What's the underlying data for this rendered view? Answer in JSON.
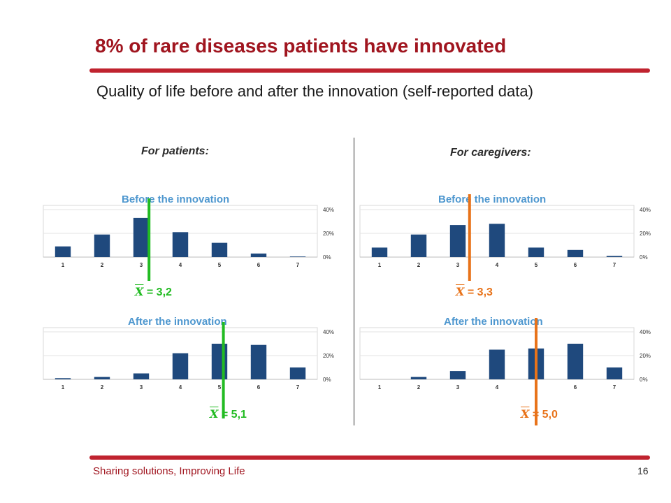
{
  "slide": {
    "title": "8% of rare diseases patients have innovated",
    "subtitle": "Quality of life before and after the innovation (self-reported data)",
    "footer": "Sharing solutions, Improving Life",
    "page_number": "16",
    "patients_heading": "For patients:",
    "caregivers_heading": "For caregivers:",
    "colors": {
      "title": "#a0151f",
      "rule": "#c0232f",
      "bar": "#1f497d",
      "chart_title": "#4e97cf",
      "patients_mean": "#22bb22",
      "caregivers_mean": "#e8731a"
    }
  },
  "chart_data": [
    {
      "type": "bar",
      "title": "Before the innovation",
      "group": "For patients:",
      "categories": [
        "1",
        "2",
        "3",
        "4",
        "5",
        "6",
        "7"
      ],
      "values": [
        9,
        19,
        33,
        21,
        12,
        3,
        0.5
      ],
      "ylim": [
        0,
        40
      ],
      "yticks": [
        "0%",
        "20%",
        "40%"
      ],
      "grid": true,
      "mean": 3.2,
      "mean_label": "= 3,2",
      "mean_symbol": "X",
      "mean_color": "#22bb22"
    },
    {
      "type": "bar",
      "title": "After the innovation",
      "group": "For patients:",
      "categories": [
        "1",
        "2",
        "3",
        "4",
        "5",
        "6",
        "7"
      ],
      "values": [
        1,
        2,
        5,
        22,
        30,
        29,
        10
      ],
      "ylim": [
        0,
        40
      ],
      "yticks": [
        "0%",
        "20%",
        "40%"
      ],
      "grid": true,
      "mean": 5.1,
      "mean_label": "= 5,1",
      "mean_symbol": "X",
      "mean_color": "#22bb22"
    },
    {
      "type": "bar",
      "title": "Before the innovation",
      "group": "For caregivers:",
      "categories": [
        "1",
        "2",
        "3",
        "4",
        "5",
        "6",
        "7"
      ],
      "values": [
        8,
        19,
        27,
        28,
        8,
        6,
        1
      ],
      "ylim": [
        0,
        40
      ],
      "yticks": [
        "0%",
        "20%",
        "40%"
      ],
      "grid": true,
      "mean": 3.3,
      "mean_label": "= 3,3",
      "mean_symbol": "X",
      "mean_color": "#e8731a"
    },
    {
      "type": "bar",
      "title": "After the innovation",
      "group": "For caregivers:",
      "categories": [
        "1",
        "2",
        "3",
        "4",
        "",
        "6",
        "7"
      ],
      "values": [
        0,
        2,
        7,
        25,
        26,
        30,
        10
      ],
      "ylim": [
        0,
        40
      ],
      "yticks": [
        "0%",
        "20%",
        "40%"
      ],
      "grid": true,
      "mean": 5.0,
      "mean_label": "= 5,0",
      "mean_symbol": "X",
      "mean_color": "#e8731a"
    }
  ]
}
